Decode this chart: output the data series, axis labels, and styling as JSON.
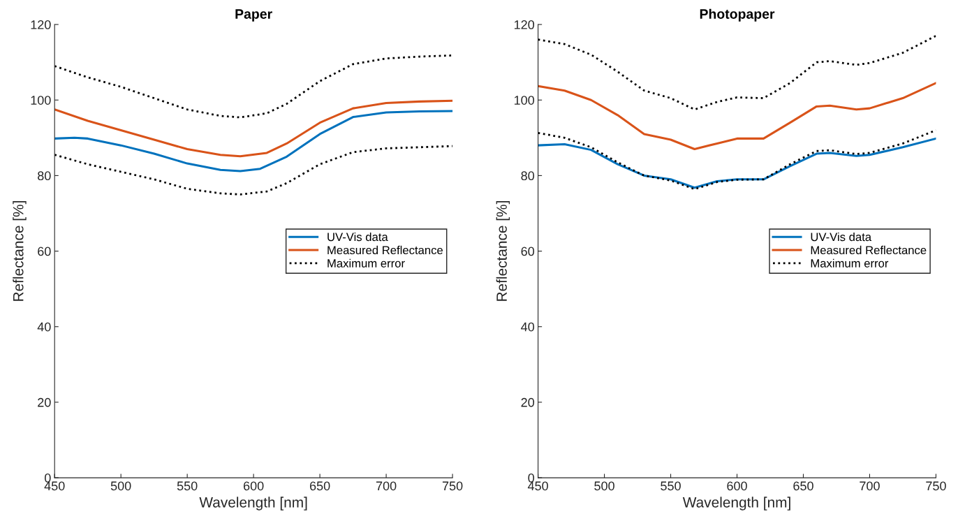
{
  "chart_data": [
    {
      "type": "line",
      "title": "Paper",
      "xlabel": "Wavelength [nm]",
      "ylabel": "Reflectance [%]",
      "xlim": [
        450,
        750
      ],
      "ylim": [
        0,
        120
      ],
      "xticks": [
        450,
        500,
        550,
        600,
        650,
        700,
        750
      ],
      "yticks": [
        0,
        20,
        40,
        60,
        80,
        100,
        120
      ],
      "grid": false,
      "legend": "right",
      "series": [
        {
          "name": "UV-Vis data",
          "color": "#0072bd",
          "line_style": "solid",
          "x": [
            450,
            465,
            475,
            500,
            525,
            550,
            575,
            590,
            605,
            625,
            650,
            675,
            700,
            725,
            750
          ],
          "values": [
            89.8,
            90,
            89.8,
            88,
            85.8,
            83.2,
            81.5,
            81.2,
            81.8,
            85,
            91,
            95.5,
            96.7,
            97,
            97.1
          ]
        },
        {
          "name": "Measured Reflectance",
          "color": "#d95319",
          "line_style": "solid",
          "x": [
            450,
            475,
            500,
            525,
            550,
            575,
            590,
            610,
            625,
            650,
            675,
            700,
            725,
            750
          ],
          "values": [
            97.5,
            94.5,
            92,
            89.5,
            87,
            85.5,
            85.1,
            86,
            88.5,
            94,
            97.8,
            99.2,
            99.6,
            99.8
          ]
        },
        {
          "name": "Maximum error",
          "color": "#000000",
          "line_style": "dotted",
          "x": [
            450,
            475,
            500,
            525,
            550,
            575,
            590,
            610,
            625,
            650,
            675,
            700,
            725,
            750
          ],
          "values": [
            109,
            106,
            103.5,
            100.5,
            97.5,
            95.8,
            95.4,
            96.5,
            99,
            105,
            109.5,
            111,
            111.5,
            111.8
          ]
        },
        {
          "color": "#000000",
          "line_style": "dotted",
          "x": [
            450,
            475,
            500,
            525,
            550,
            575,
            590,
            610,
            625,
            650,
            675,
            700,
            725,
            750
          ],
          "values": [
            85.5,
            83,
            81,
            79,
            76.5,
            75.3,
            75,
            75.8,
            78,
            83,
            86.2,
            87.2,
            87.5,
            87.8
          ]
        }
      ]
    },
    {
      "type": "line",
      "title": "Photopaper",
      "xlabel": "Wavelength [nm]",
      "ylabel": "Reflectance [%]",
      "xlim": [
        450,
        750
      ],
      "ylim": [
        0,
        120
      ],
      "xticks": [
        450,
        500,
        550,
        600,
        650,
        700,
        750
      ],
      "yticks": [
        0,
        20,
        40,
        60,
        80,
        100,
        120
      ],
      "grid": false,
      "legend": "right",
      "series": [
        {
          "name": "UV-Vis data",
          "color": "#0072bd",
          "line_style": "solid",
          "x": [
            450,
            470,
            490,
            510,
            530,
            550,
            568,
            585,
            600,
            620,
            640,
            660,
            670,
            690,
            700,
            725,
            750
          ],
          "values": [
            88,
            88.3,
            86.8,
            83,
            80,
            79,
            76.8,
            78.5,
            79,
            79,
            82.5,
            85.8,
            86,
            85.2,
            85.5,
            87.5,
            89.8
          ]
        },
        {
          "name": "Measured Reflectance",
          "color": "#d95319",
          "line_style": "solid",
          "x": [
            450,
            470,
            490,
            510,
            530,
            550,
            568,
            585,
            600,
            620,
            640,
            660,
            670,
            690,
            700,
            725,
            750
          ],
          "values": [
            103.7,
            102.5,
            100,
            96,
            91,
            89.5,
            87,
            88.5,
            89.8,
            89.8,
            94,
            98.3,
            98.5,
            97.5,
            97.8,
            100.5,
            104.5
          ]
        },
        {
          "name": "Maximum error",
          "color": "#000000",
          "line_style": "dotted",
          "x": [
            450,
            470,
            490,
            510,
            530,
            550,
            568,
            585,
            600,
            620,
            640,
            660,
            670,
            690,
            700,
            725,
            750
          ],
          "values": [
            116,
            114.8,
            112,
            107.5,
            102.5,
            100.5,
            97.5,
            99.5,
            100.7,
            100.5,
            104.5,
            110,
            110.3,
            109.3,
            109.8,
            112.5,
            117
          ]
        },
        {
          "color": "#000000",
          "line_style": "dotted",
          "x": [
            450,
            470,
            490,
            510,
            530,
            550,
            568,
            585,
            600,
            620,
            640,
            660,
            670,
            690,
            700,
            725,
            750
          ],
          "values": [
            91.3,
            90,
            87.5,
            83.5,
            80,
            78.7,
            76.4,
            78.3,
            78.9,
            79,
            83,
            86.5,
            86.7,
            85.7,
            86,
            88.5,
            92
          ]
        }
      ]
    }
  ]
}
